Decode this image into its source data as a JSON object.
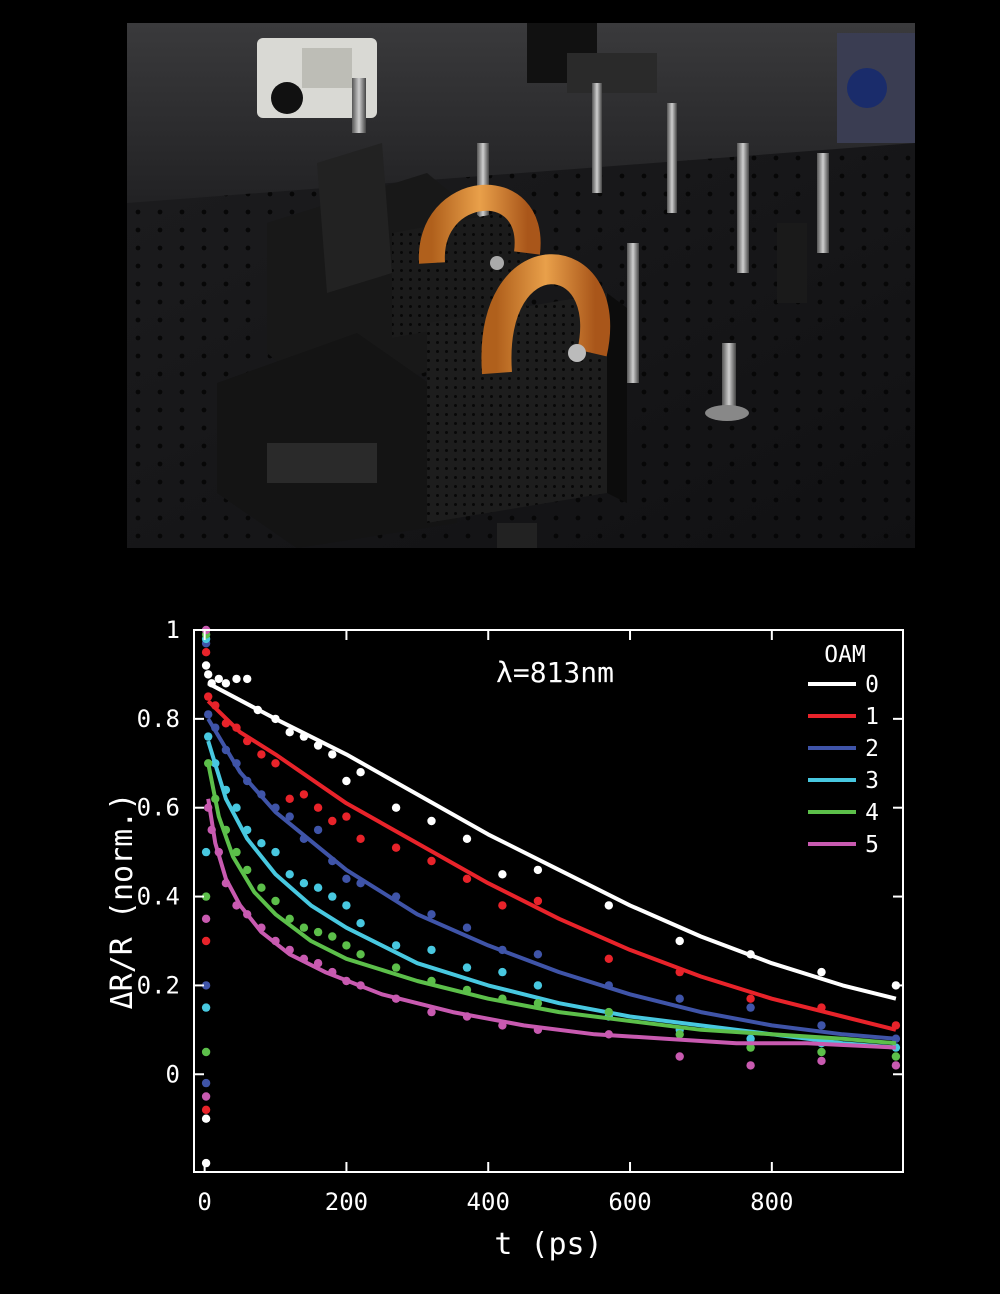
{
  "photo": {
    "description_icon": "optical-lab-photo"
  },
  "chart_data": {
    "type": "scatter",
    "xlabel": "t (ps)",
    "ylabel": "ΔR/R (norm.)",
    "xlim": [
      -15,
      985
    ],
    "ylim": [
      -0.22,
      1.0
    ],
    "xticks": [
      0,
      200,
      400,
      600,
      800
    ],
    "yticks": [
      0,
      0.2,
      0.4,
      0.6,
      0.8,
      1
    ],
    "ytick_labels": [
      "0",
      "0.2",
      "0.4",
      "0.6",
      "0.8",
      "1"
    ],
    "annotation": "λ=813nm",
    "legend_title": "OAM",
    "legend_position": "top-right",
    "grid": false,
    "series": [
      {
        "name": "0",
        "color": "#ffffff",
        "fit": [
          [
            5,
            0.88
          ],
          [
            100,
            0.8
          ],
          [
            200,
            0.72
          ],
          [
            300,
            0.63
          ],
          [
            400,
            0.54
          ],
          [
            500,
            0.46
          ],
          [
            600,
            0.38
          ],
          [
            700,
            0.31
          ],
          [
            800,
            0.25
          ],
          [
            900,
            0.2
          ],
          [
            975,
            0.17
          ]
        ],
        "points": [
          [
            2,
            0.92
          ],
          [
            5,
            0.9
          ],
          [
            10,
            0.88
          ],
          [
            20,
            0.89
          ],
          [
            30,
            0.88
          ],
          [
            45,
            0.89
          ],
          [
            60,
            0.89
          ],
          [
            75,
            0.82
          ],
          [
            100,
            0.8
          ],
          [
            120,
            0.77
          ],
          [
            140,
            0.76
          ],
          [
            160,
            0.74
          ],
          [
            180,
            0.72
          ],
          [
            200,
            0.66
          ],
          [
            220,
            0.68
          ],
          [
            270,
            0.6
          ],
          [
            320,
            0.57
          ],
          [
            370,
            0.53
          ],
          [
            420,
            0.45
          ],
          [
            470,
            0.46
          ],
          [
            570,
            0.38
          ],
          [
            670,
            0.3
          ],
          [
            770,
            0.27
          ],
          [
            870,
            0.23
          ],
          [
            975,
            0.2
          ],
          [
            2,
            -0.1
          ],
          [
            2,
            -0.2
          ]
        ]
      },
      {
        "name": "1",
        "color": "#e8232a",
        "fit": [
          [
            5,
            0.84
          ],
          [
            50,
            0.77
          ],
          [
            100,
            0.72
          ],
          [
            200,
            0.61
          ],
          [
            300,
            0.52
          ],
          [
            400,
            0.43
          ],
          [
            500,
            0.35
          ],
          [
            600,
            0.28
          ],
          [
            700,
            0.22
          ],
          [
            800,
            0.17
          ],
          [
            900,
            0.13
          ],
          [
            975,
            0.1
          ]
        ],
        "points": [
          [
            2,
            0.95
          ],
          [
            5,
            0.85
          ],
          [
            15,
            0.83
          ],
          [
            30,
            0.79
          ],
          [
            45,
            0.78
          ],
          [
            60,
            0.75
          ],
          [
            80,
            0.72
          ],
          [
            100,
            0.7
          ],
          [
            120,
            0.62
          ],
          [
            140,
            0.63
          ],
          [
            160,
            0.6
          ],
          [
            180,
            0.57
          ],
          [
            200,
            0.58
          ],
          [
            220,
            0.53
          ],
          [
            270,
            0.51
          ],
          [
            320,
            0.48
          ],
          [
            370,
            0.44
          ],
          [
            420,
            0.38
          ],
          [
            470,
            0.39
          ],
          [
            570,
            0.26
          ],
          [
            670,
            0.23
          ],
          [
            770,
            0.17
          ],
          [
            870,
            0.15
          ],
          [
            975,
            0.11
          ],
          [
            2,
            0.3
          ],
          [
            2,
            -0.08
          ]
        ]
      },
      {
        "name": "2",
        "color": "#3f54a8",
        "fit": [
          [
            5,
            0.8
          ],
          [
            50,
            0.68
          ],
          [
            100,
            0.59
          ],
          [
            200,
            0.46
          ],
          [
            300,
            0.36
          ],
          [
            400,
            0.29
          ],
          [
            500,
            0.23
          ],
          [
            600,
            0.18
          ],
          [
            700,
            0.14
          ],
          [
            800,
            0.11
          ],
          [
            900,
            0.09
          ],
          [
            975,
            0.08
          ]
        ],
        "points": [
          [
            2,
            0.97
          ],
          [
            5,
            0.81
          ],
          [
            15,
            0.78
          ],
          [
            30,
            0.73
          ],
          [
            45,
            0.7
          ],
          [
            60,
            0.66
          ],
          [
            80,
            0.63
          ],
          [
            100,
            0.6
          ],
          [
            120,
            0.58
          ],
          [
            140,
            0.53
          ],
          [
            160,
            0.55
          ],
          [
            180,
            0.48
          ],
          [
            200,
            0.44
          ],
          [
            220,
            0.43
          ],
          [
            270,
            0.4
          ],
          [
            320,
            0.36
          ],
          [
            370,
            0.33
          ],
          [
            420,
            0.28
          ],
          [
            470,
            0.27
          ],
          [
            570,
            0.2
          ],
          [
            670,
            0.17
          ],
          [
            770,
            0.15
          ],
          [
            870,
            0.11
          ],
          [
            975,
            0.08
          ],
          [
            2,
            0.2
          ],
          [
            2,
            -0.02
          ]
        ]
      },
      {
        "name": "3",
        "color": "#48c8e0",
        "fit": [
          [
            5,
            0.75
          ],
          [
            30,
            0.62
          ],
          [
            60,
            0.53
          ],
          [
            100,
            0.45
          ],
          [
            150,
            0.38
          ],
          [
            200,
            0.33
          ],
          [
            300,
            0.25
          ],
          [
            400,
            0.2
          ],
          [
            500,
            0.16
          ],
          [
            600,
            0.13
          ],
          [
            700,
            0.11
          ],
          [
            800,
            0.09
          ],
          [
            900,
            0.07
          ],
          [
            975,
            0.06
          ]
        ],
        "points": [
          [
            2,
            0.98
          ],
          [
            5,
            0.76
          ],
          [
            15,
            0.7
          ],
          [
            30,
            0.64
          ],
          [
            45,
            0.6
          ],
          [
            60,
            0.55
          ],
          [
            80,
            0.52
          ],
          [
            100,
            0.5
          ],
          [
            120,
            0.45
          ],
          [
            140,
            0.43
          ],
          [
            160,
            0.42
          ],
          [
            180,
            0.4
          ],
          [
            200,
            0.38
          ],
          [
            220,
            0.34
          ],
          [
            270,
            0.29
          ],
          [
            320,
            0.28
          ],
          [
            370,
            0.24
          ],
          [
            420,
            0.23
          ],
          [
            470,
            0.2
          ],
          [
            570,
            0.13
          ],
          [
            670,
            0.1
          ],
          [
            770,
            0.08
          ],
          [
            870,
            0.07
          ],
          [
            975,
            0.06
          ],
          [
            2,
            0.5
          ],
          [
            2,
            0.15
          ]
        ]
      },
      {
        "name": "4",
        "color": "#5cbf4a",
        "fit": [
          [
            5,
            0.7
          ],
          [
            20,
            0.58
          ],
          [
            40,
            0.49
          ],
          [
            70,
            0.41
          ],
          [
            100,
            0.36
          ],
          [
            150,
            0.3
          ],
          [
            200,
            0.26
          ],
          [
            300,
            0.21
          ],
          [
            400,
            0.17
          ],
          [
            500,
            0.14
          ],
          [
            600,
            0.12
          ],
          [
            700,
            0.1
          ],
          [
            800,
            0.09
          ],
          [
            900,
            0.08
          ],
          [
            975,
            0.07
          ]
        ],
        "points": [
          [
            2,
            0.99
          ],
          [
            5,
            0.7
          ],
          [
            15,
            0.62
          ],
          [
            30,
            0.55
          ],
          [
            45,
            0.5
          ],
          [
            60,
            0.46
          ],
          [
            80,
            0.42
          ],
          [
            100,
            0.39
          ],
          [
            120,
            0.35
          ],
          [
            140,
            0.33
          ],
          [
            160,
            0.32
          ],
          [
            180,
            0.31
          ],
          [
            200,
            0.29
          ],
          [
            220,
            0.27
          ],
          [
            270,
            0.24
          ],
          [
            320,
            0.21
          ],
          [
            370,
            0.19
          ],
          [
            420,
            0.17
          ],
          [
            470,
            0.16
          ],
          [
            570,
            0.14
          ],
          [
            670,
            0.09
          ],
          [
            770,
            0.06
          ],
          [
            870,
            0.05
          ],
          [
            975,
            0.04
          ],
          [
            2,
            0.4
          ],
          [
            2,
            0.05
          ]
        ]
      },
      {
        "name": "5",
        "color": "#c85ab0",
        "fit": [
          [
            5,
            0.62
          ],
          [
            15,
            0.52
          ],
          [
            30,
            0.44
          ],
          [
            50,
            0.38
          ],
          [
            80,
            0.32
          ],
          [
            120,
            0.27
          ],
          [
            170,
            0.23
          ],
          [
            250,
            0.18
          ],
          [
            350,
            0.14
          ],
          [
            450,
            0.11
          ],
          [
            550,
            0.09
          ],
          [
            650,
            0.08
          ],
          [
            750,
            0.07
          ],
          [
            850,
            0.07
          ],
          [
            975,
            0.06
          ]
        ],
        "points": [
          [
            2,
            1.0
          ],
          [
            5,
            0.6
          ],
          [
            10,
            0.55
          ],
          [
            20,
            0.5
          ],
          [
            30,
            0.43
          ],
          [
            45,
            0.38
          ],
          [
            60,
            0.36
          ],
          [
            80,
            0.33
          ],
          [
            100,
            0.3
          ],
          [
            120,
            0.28
          ],
          [
            140,
            0.26
          ],
          [
            160,
            0.25
          ],
          [
            180,
            0.23
          ],
          [
            200,
            0.21
          ],
          [
            220,
            0.2
          ],
          [
            270,
            0.17
          ],
          [
            320,
            0.14
          ],
          [
            370,
            0.13
          ],
          [
            420,
            0.11
          ],
          [
            470,
            0.1
          ],
          [
            570,
            0.09
          ],
          [
            670,
            0.04
          ],
          [
            770,
            0.02
          ],
          [
            870,
            0.03
          ],
          [
            975,
            0.02
          ],
          [
            2,
            0.35
          ],
          [
            2,
            -0.05
          ]
        ]
      }
    ]
  }
}
